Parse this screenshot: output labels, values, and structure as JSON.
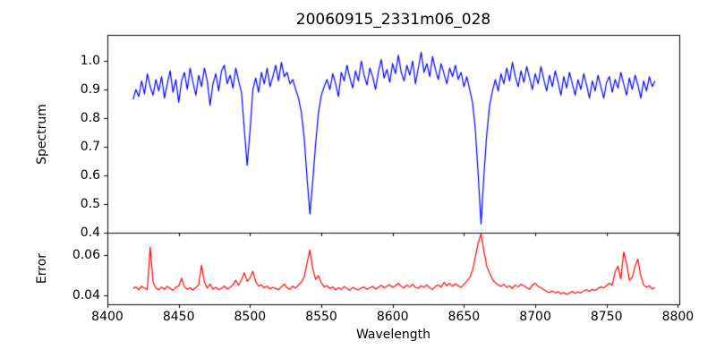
{
  "figure": {
    "title": "20060915_2331m06_028",
    "xlabel": "Wavelength",
    "background": "#ffffff",
    "axes_color": "#000000"
  },
  "chart_data": [
    {
      "type": "line",
      "name": "spectrum-panel",
      "title": "20060915_2331m06_028",
      "ylabel": "Spectrum",
      "line_color": "#0000ff",
      "ylim": [
        0.4,
        1.0906
      ],
      "yticks": [
        0.4,
        0.5,
        0.6,
        0.7,
        0.8,
        0.9,
        1.0
      ],
      "ytick_labels": [
        "0.4",
        "0.5",
        "0.6",
        "0.7",
        "0.8",
        "0.9",
        "1.0"
      ],
      "grid": false,
      "x_start": 8418,
      "x_step": 2,
      "values": [
        0.865,
        0.9,
        0.875,
        0.93,
        0.885,
        0.955,
        0.91,
        0.88,
        0.935,
        0.895,
        0.945,
        0.87,
        0.92,
        0.965,
        0.89,
        0.935,
        0.855,
        0.93,
        0.96,
        0.9,
        0.975,
        0.925,
        0.88,
        0.95,
        0.91,
        0.975,
        0.93,
        0.845,
        0.92,
        0.955,
        0.895,
        0.965,
        0.985,
        0.92,
        0.95,
        0.905,
        0.975,
        0.93,
        0.89,
        0.76,
        0.635,
        0.755,
        0.9,
        0.94,
        0.89,
        0.96,
        0.92,
        0.975,
        0.91,
        0.945,
        0.985,
        0.93,
        0.995,
        0.945,
        0.96,
        0.92,
        0.935,
        0.9,
        0.87,
        0.82,
        0.73,
        0.59,
        0.465,
        0.58,
        0.71,
        0.82,
        0.88,
        0.91,
        0.935,
        0.9,
        0.955,
        0.92,
        0.875,
        0.96,
        0.93,
        0.985,
        0.94,
        0.905,
        0.965,
        0.93,
        1.0,
        0.95,
        0.915,
        0.975,
        0.945,
        0.9,
        0.96,
        1.005,
        0.94,
        0.97,
        0.925,
        0.99,
        0.955,
        1.02,
        0.96,
        0.93,
        0.985,
        0.95,
        1.0,
        0.92,
        0.975,
        1.03,
        0.96,
        0.99,
        0.945,
        1.015,
        0.97,
        0.935,
        0.99,
        0.955,
        0.92,
        0.975,
        0.945,
        0.985,
        0.935,
        0.96,
        0.91,
        0.945,
        0.9,
        0.855,
        0.76,
        0.6,
        0.43,
        0.6,
        0.745,
        0.845,
        0.895,
        0.935,
        0.895,
        0.955,
        0.92,
        0.975,
        0.93,
        0.995,
        0.945,
        0.91,
        0.965,
        0.925,
        0.98,
        0.94,
        0.9,
        0.955,
        0.92,
        0.98,
        0.935,
        0.895,
        0.95,
        0.91,
        0.965,
        0.925,
        0.88,
        0.945,
        0.905,
        0.96,
        0.92,
        0.88,
        0.935,
        0.9,
        0.955,
        0.915,
        0.87,
        0.93,
        0.895,
        0.95,
        0.91,
        0.87,
        0.925,
        0.945,
        0.89,
        0.935,
        0.905,
        0.96,
        0.92,
        0.88,
        0.94,
        0.9,
        0.95,
        0.915,
        0.87,
        0.93,
        0.895,
        0.945,
        0.91,
        0.93
      ]
    },
    {
      "type": "line",
      "name": "error-panel",
      "ylabel": "Error",
      "xlabel": "Wavelength",
      "line_color": "#ff0000",
      "ylim": [
        0.0356,
        0.0711
      ],
      "yticks": [
        0.04,
        0.06
      ],
      "ytick_labels": [
        "0.04",
        "0.06"
      ],
      "xlim": [
        8400,
        8801
      ],
      "xticks": [
        8400,
        8450,
        8500,
        8550,
        8600,
        8650,
        8700,
        8750,
        8800
      ],
      "xtick_labels": [
        "8400",
        "8450",
        "8500",
        "8550",
        "8600",
        "8650",
        "8700",
        "8750",
        "8800"
      ],
      "grid": false,
      "shared_x_with_top": true,
      "x_start": 8418,
      "x_step": 2,
      "values": [
        0.0435,
        0.0442,
        0.0428,
        0.0446,
        0.0436,
        0.043,
        0.064,
        0.0468,
        0.0436,
        0.0428,
        0.0442,
        0.043,
        0.0445,
        0.0435,
        0.0425,
        0.044,
        0.0446,
        0.0485,
        0.0444,
        0.043,
        0.0438,
        0.0426,
        0.044,
        0.0452,
        0.055,
        0.0466,
        0.0436,
        0.0456,
        0.043,
        0.044,
        0.0428,
        0.0436,
        0.0446,
        0.0432,
        0.044,
        0.0452,
        0.0475,
        0.045,
        0.0478,
        0.0512,
        0.047,
        0.0486,
        0.052,
        0.0468,
        0.0446,
        0.0452,
        0.0438,
        0.0446,
        0.0432,
        0.044,
        0.0434,
        0.0428,
        0.0442,
        0.0456,
        0.0438,
        0.043,
        0.0446,
        0.0436,
        0.0452,
        0.0466,
        0.0492,
        0.0562,
        0.0625,
        0.0532,
        0.048,
        0.0498,
        0.0462,
        0.0442,
        0.0448,
        0.0435,
        0.0442,
        0.0428,
        0.0438,
        0.043,
        0.0444,
        0.0435,
        0.0425,
        0.044,
        0.0432,
        0.0428,
        0.0436,
        0.0442,
        0.043,
        0.0438,
        0.0445,
        0.0432,
        0.044,
        0.045,
        0.0438,
        0.0446,
        0.0452,
        0.044,
        0.0448,
        0.046,
        0.0445,
        0.0438,
        0.0452,
        0.0442,
        0.0455,
        0.044,
        0.0435,
        0.0448,
        0.044,
        0.0452,
        0.0438,
        0.043,
        0.0445,
        0.0452,
        0.044,
        0.0465,
        0.0448,
        0.046,
        0.0445,
        0.0458,
        0.0448,
        0.044,
        0.0455,
        0.047,
        0.0488,
        0.0525,
        0.0592,
        0.0662,
        0.0705,
        0.0618,
        0.0545,
        0.051,
        0.048,
        0.0462,
        0.0452,
        0.0445,
        0.0455,
        0.044,
        0.0448,
        0.0435,
        0.0452,
        0.0442,
        0.0455,
        0.0448,
        0.0438,
        0.043,
        0.0452,
        0.046,
        0.0445,
        0.0438,
        0.0428,
        0.042,
        0.0415,
        0.0422,
        0.0412,
        0.0418,
        0.0408,
        0.0415,
        0.0405,
        0.0412,
        0.042,
        0.041,
        0.0418,
        0.0412,
        0.0422,
        0.0428,
        0.042,
        0.043,
        0.0425,
        0.0435,
        0.0442,
        0.0438,
        0.0448,
        0.046,
        0.0452,
        0.0518,
        0.0545,
        0.0482,
        0.0615,
        0.056,
        0.0475,
        0.049,
        0.0545,
        0.058,
        0.0495,
        0.0452,
        0.044,
        0.0448,
        0.0432,
        0.0438
      ]
    }
  ]
}
